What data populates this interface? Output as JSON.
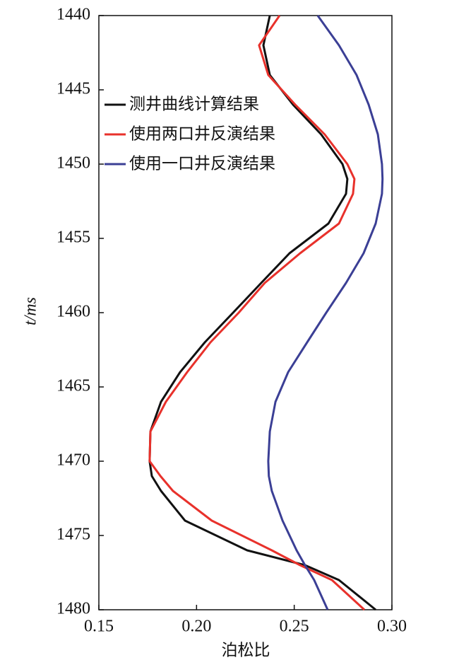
{
  "chart_data": {
    "type": "line",
    "orientation": "vertical",
    "xlabel": "泊松比",
    "ylabel": "t/ms",
    "y": [
      1440,
      1442,
      1444,
      1446,
      1448,
      1450,
      1451,
      1452,
      1454,
      1456,
      1458,
      1460,
      1462,
      1464,
      1466,
      1468,
      1470,
      1471,
      1472,
      1474,
      1476,
      1477,
      1478,
      1480
    ],
    "series": [
      {
        "name": "测井曲线计算结果",
        "color": "#111111",
        "values": [
          0.2375,
          0.2342,
          0.2375,
          0.2494,
          0.2638,
          0.2747,
          0.2772,
          0.2765,
          0.2675,
          0.2476,
          0.2331,
          0.2187,
          0.2042,
          0.1916,
          0.1818,
          0.1764,
          0.176,
          0.1771,
          0.1818,
          0.1941,
          0.2259,
          0.2555,
          0.2729,
          0.2917
        ]
      },
      {
        "name": "使用两口井反演结果",
        "color": "#e8312b",
        "values": [
          0.2425,
          0.232,
          0.2367,
          0.2505,
          0.2656,
          0.2772,
          0.2808,
          0.2801,
          0.2729,
          0.253,
          0.2349,
          0.2216,
          0.2071,
          0.1952,
          0.1843,
          0.1764,
          0.176,
          0.1815,
          0.1879,
          0.2078,
          0.2385,
          0.253,
          0.2693,
          0.2859
        ]
      },
      {
        "name": "使用一口井反演结果",
        "color": "#3b3f95",
        "values": [
          0.262,
          0.2729,
          0.2819,
          0.2881,
          0.2928,
          0.2949,
          0.2952,
          0.2949,
          0.2917,
          0.2855,
          0.2765,
          0.2664,
          0.2566,
          0.2469,
          0.2404,
          0.2375,
          0.2367,
          0.237,
          0.2385,
          0.244,
          0.2512,
          0.2555,
          0.2602,
          0.2671
        ]
      }
    ],
    "xlim": [
      0.15,
      0.3
    ],
    "xticks": [
      0.15,
      {
        "value": 0.2,
        "label": "0.20"
      },
      0.25,
      {
        "value": 0.3,
        "label": "0.30"
      }
    ],
    "ylim": [
      1440,
      1480
    ],
    "yticks": [
      1440,
      1445,
      1450,
      1455,
      1460,
      1465,
      1470,
      1475,
      1480
    ],
    "legend": "upper left",
    "grid": false
  }
}
